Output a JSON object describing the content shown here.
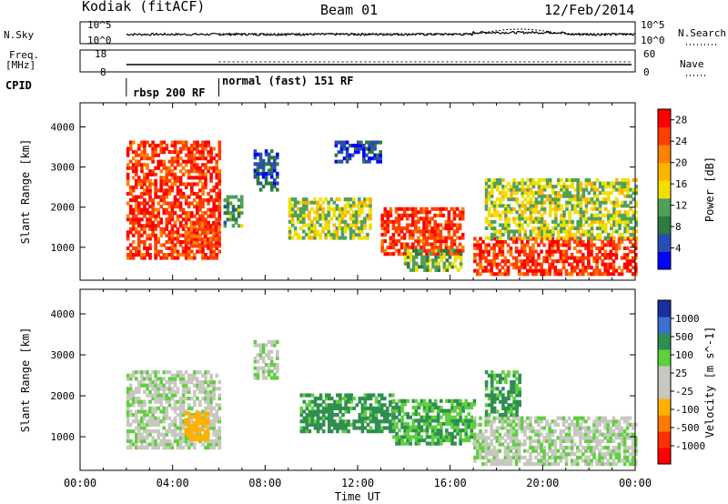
{
  "header": {
    "station": "Kodiak (fitACF)",
    "beam": "Beam 01",
    "date": "12/Feb/2014"
  },
  "panel_labels": {
    "nsky": "N.Sky",
    "nsky_ticks": [
      "10^5",
      "10^0"
    ],
    "nsearch": "N.Search",
    "nsearch_ticks": [
      "10^5",
      "10^0"
    ],
    "freq_label_1": "Freq.",
    "freq_label_2": "[MHz]",
    "freq_ticks": [
      "18",
      "8"
    ],
    "nave": "Nave",
    "nave_ticks": [
      "60",
      "0"
    ],
    "cpid": "CPID"
  },
  "modes": [
    {
      "label": "rbsp 200 RF",
      "start_hour": 2.0,
      "end_hour": 6.0
    },
    {
      "label": "normal (fast) 151 RF",
      "start_hour": 6.0,
      "end_hour": 24.0
    }
  ],
  "colors": {
    "power_scale": [
      "#0000ff",
      "#2a4db3",
      "#2f7a3f",
      "#4fa05a",
      "#f0e000",
      "#ffb400",
      "#ff8000",
      "#ff4000",
      "#ff0000"
    ],
    "velocity_scale": [
      "#1a2fa0",
      "#3b6fd0",
      "#2f8f4f",
      "#5fcf3f",
      "#c8c8c0",
      "#c8c8c0",
      "#ffb000",
      "#ff7a00",
      "#ff3000",
      "#ff0000"
    ]
  },
  "chart_data": [
    {
      "type": "heatmap",
      "title": "Power",
      "xlabel": "",
      "ylabel": "Slant Range [km]",
      "x_ticks": [
        "00:00",
        "04:00",
        "08:00",
        "12:00",
        "16:00",
        "20:00",
        "00:00"
      ],
      "y_ticks": [
        "1000",
        "2000",
        "3000",
        "4000"
      ],
      "ylim": [
        180,
        4600
      ],
      "colorbar": {
        "label": "Power [dB]",
        "ticks": [
          "4",
          "8",
          "12",
          "16",
          "20",
          "24",
          "28"
        ],
        "range": [
          0,
          30
        ]
      },
      "regions": [
        {
          "t0": 2.0,
          "t1": 6.0,
          "r0": 700,
          "r1": 3600,
          "power": 26
        },
        {
          "t0": 4.5,
          "t1": 6.0,
          "r0": 1000,
          "r1": 1600,
          "power": 24
        },
        {
          "t0": 6.2,
          "t1": 7.0,
          "r0": 1500,
          "r1": 2300,
          "power": 10
        },
        {
          "t0": 7.5,
          "t1": 8.5,
          "r0": 2400,
          "r1": 3400,
          "power": 6
        },
        {
          "t0": 9.0,
          "t1": 12.5,
          "r0": 1200,
          "r1": 2200,
          "power": 14
        },
        {
          "t0": 11.0,
          "t1": 13.0,
          "r0": 3100,
          "r1": 3600,
          "power": 5
        },
        {
          "t0": 13.0,
          "t1": 16.5,
          "r0": 800,
          "r1": 2000,
          "power": 26
        },
        {
          "t0": 14.0,
          "t1": 16.5,
          "r0": 400,
          "r1": 900,
          "power": 12
        },
        {
          "t0": 17.0,
          "t1": 24.0,
          "r0": 300,
          "r1": 1200,
          "power": 26
        },
        {
          "t0": 17.5,
          "t1": 24.0,
          "r0": 1200,
          "r1": 2700,
          "power": 14
        }
      ]
    },
    {
      "type": "heatmap",
      "title": "Velocity",
      "xlabel": "Time UT",
      "ylabel": "Slant Range [km]",
      "x_ticks": [
        "00:00",
        "04:00",
        "08:00",
        "12:00",
        "16:00",
        "20:00",
        "00:00"
      ],
      "y_ticks": [
        "1000",
        "2000",
        "3000",
        "4000"
      ],
      "ylim": [
        180,
        4600
      ],
      "colorbar": {
        "label": "Velocity [m s^-1]",
        "ticks": [
          "1000",
          "500",
          "100",
          "25",
          "-25",
          "-100",
          "-500",
          "-1000"
        ]
      },
      "regions": [
        {
          "t0": 2.0,
          "t1": 6.0,
          "r0": 700,
          "r1": 2600,
          "velocity": 0
        },
        {
          "t0": 4.5,
          "t1": 5.5,
          "r0": 900,
          "r1": 1600,
          "velocity": -400
        },
        {
          "t0": 7.5,
          "t1": 8.5,
          "r0": 2400,
          "r1": 3300,
          "velocity": 0
        },
        {
          "t0": 9.5,
          "t1": 13.5,
          "r0": 1100,
          "r1": 2000,
          "velocity": 150
        },
        {
          "t0": 13.5,
          "t1": 17.0,
          "r0": 800,
          "r1": 1900,
          "velocity": 100
        },
        {
          "t0": 17.0,
          "t1": 24.0,
          "r0": 300,
          "r1": 1500,
          "velocity": 0
        },
        {
          "t0": 17.5,
          "t1": 19.0,
          "r0": 1500,
          "r1": 2600,
          "velocity": 120
        }
      ]
    }
  ]
}
